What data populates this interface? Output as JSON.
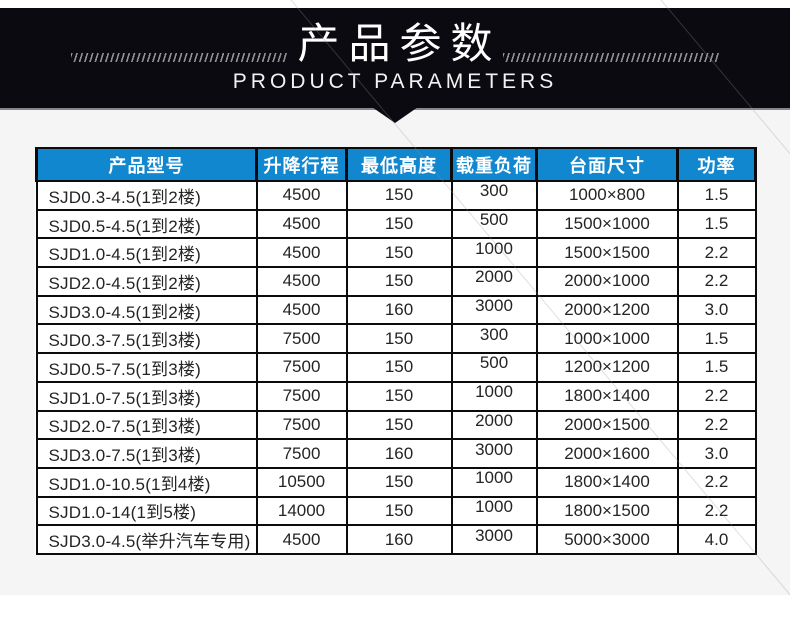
{
  "banner": {
    "title_cn": "产品参数",
    "title_en": "PRODUCT PARAMETERS"
  },
  "colors": {
    "banner_bg": "#0a0a10",
    "header_bg": "#1087ce",
    "border": "#0b0b0b",
    "page_bg": "#f5f5f6"
  },
  "table": {
    "headers": [
      "产品型号",
      "升降行程",
      "最低高度",
      "载重负荷",
      "台面尺寸",
      "功率"
    ],
    "rows": [
      [
        "SJD0.3-4.5(1到2楼)",
        "4500",
        "150",
        "300",
        "1000×800",
        "1.5"
      ],
      [
        "SJD0.5-4.5(1到2楼)",
        "4500",
        "150",
        "500",
        "1500×1000",
        "1.5"
      ],
      [
        "SJD1.0-4.5(1到2楼)",
        "4500",
        "150",
        "1000",
        "1500×1500",
        "2.2"
      ],
      [
        "SJD2.0-4.5(1到2楼)",
        "4500",
        "150",
        "2000",
        "2000×1000",
        "2.2"
      ],
      [
        "SJD3.0-4.5(1到2楼)",
        "4500",
        "160",
        "3000",
        "2000×1200",
        "3.0"
      ],
      [
        "SJD0.3-7.5(1到3楼)",
        "7500",
        "150",
        "300",
        "1000×1000",
        "1.5"
      ],
      [
        "SJD0.5-7.5(1到3楼)",
        "7500",
        "150",
        "500",
        "1200×1200",
        "1.5"
      ],
      [
        "SJD1.0-7.5(1到3楼)",
        "7500",
        "150",
        "1000",
        "1800×1400",
        "2.2"
      ],
      [
        "SJD2.0-7.5(1到3楼)",
        "7500",
        "150",
        "2000",
        "2000×1500",
        "2.2"
      ],
      [
        "SJD3.0-7.5(1到3楼)",
        "7500",
        "160",
        "3000",
        "2000×1600",
        "3.0"
      ],
      [
        "SJD1.0-10.5(1到4楼)",
        "10500",
        "150",
        "1000",
        "1800×1400",
        "2.2"
      ],
      [
        "SJD1.0-14(1到5楼)",
        "14000",
        "150",
        "1000",
        "1800×1500",
        "2.2"
      ],
      [
        "SJD3.0-4.5(举升汽车专用)",
        "4500",
        "160",
        "3000",
        "5000×3000",
        "4.0"
      ]
    ]
  }
}
